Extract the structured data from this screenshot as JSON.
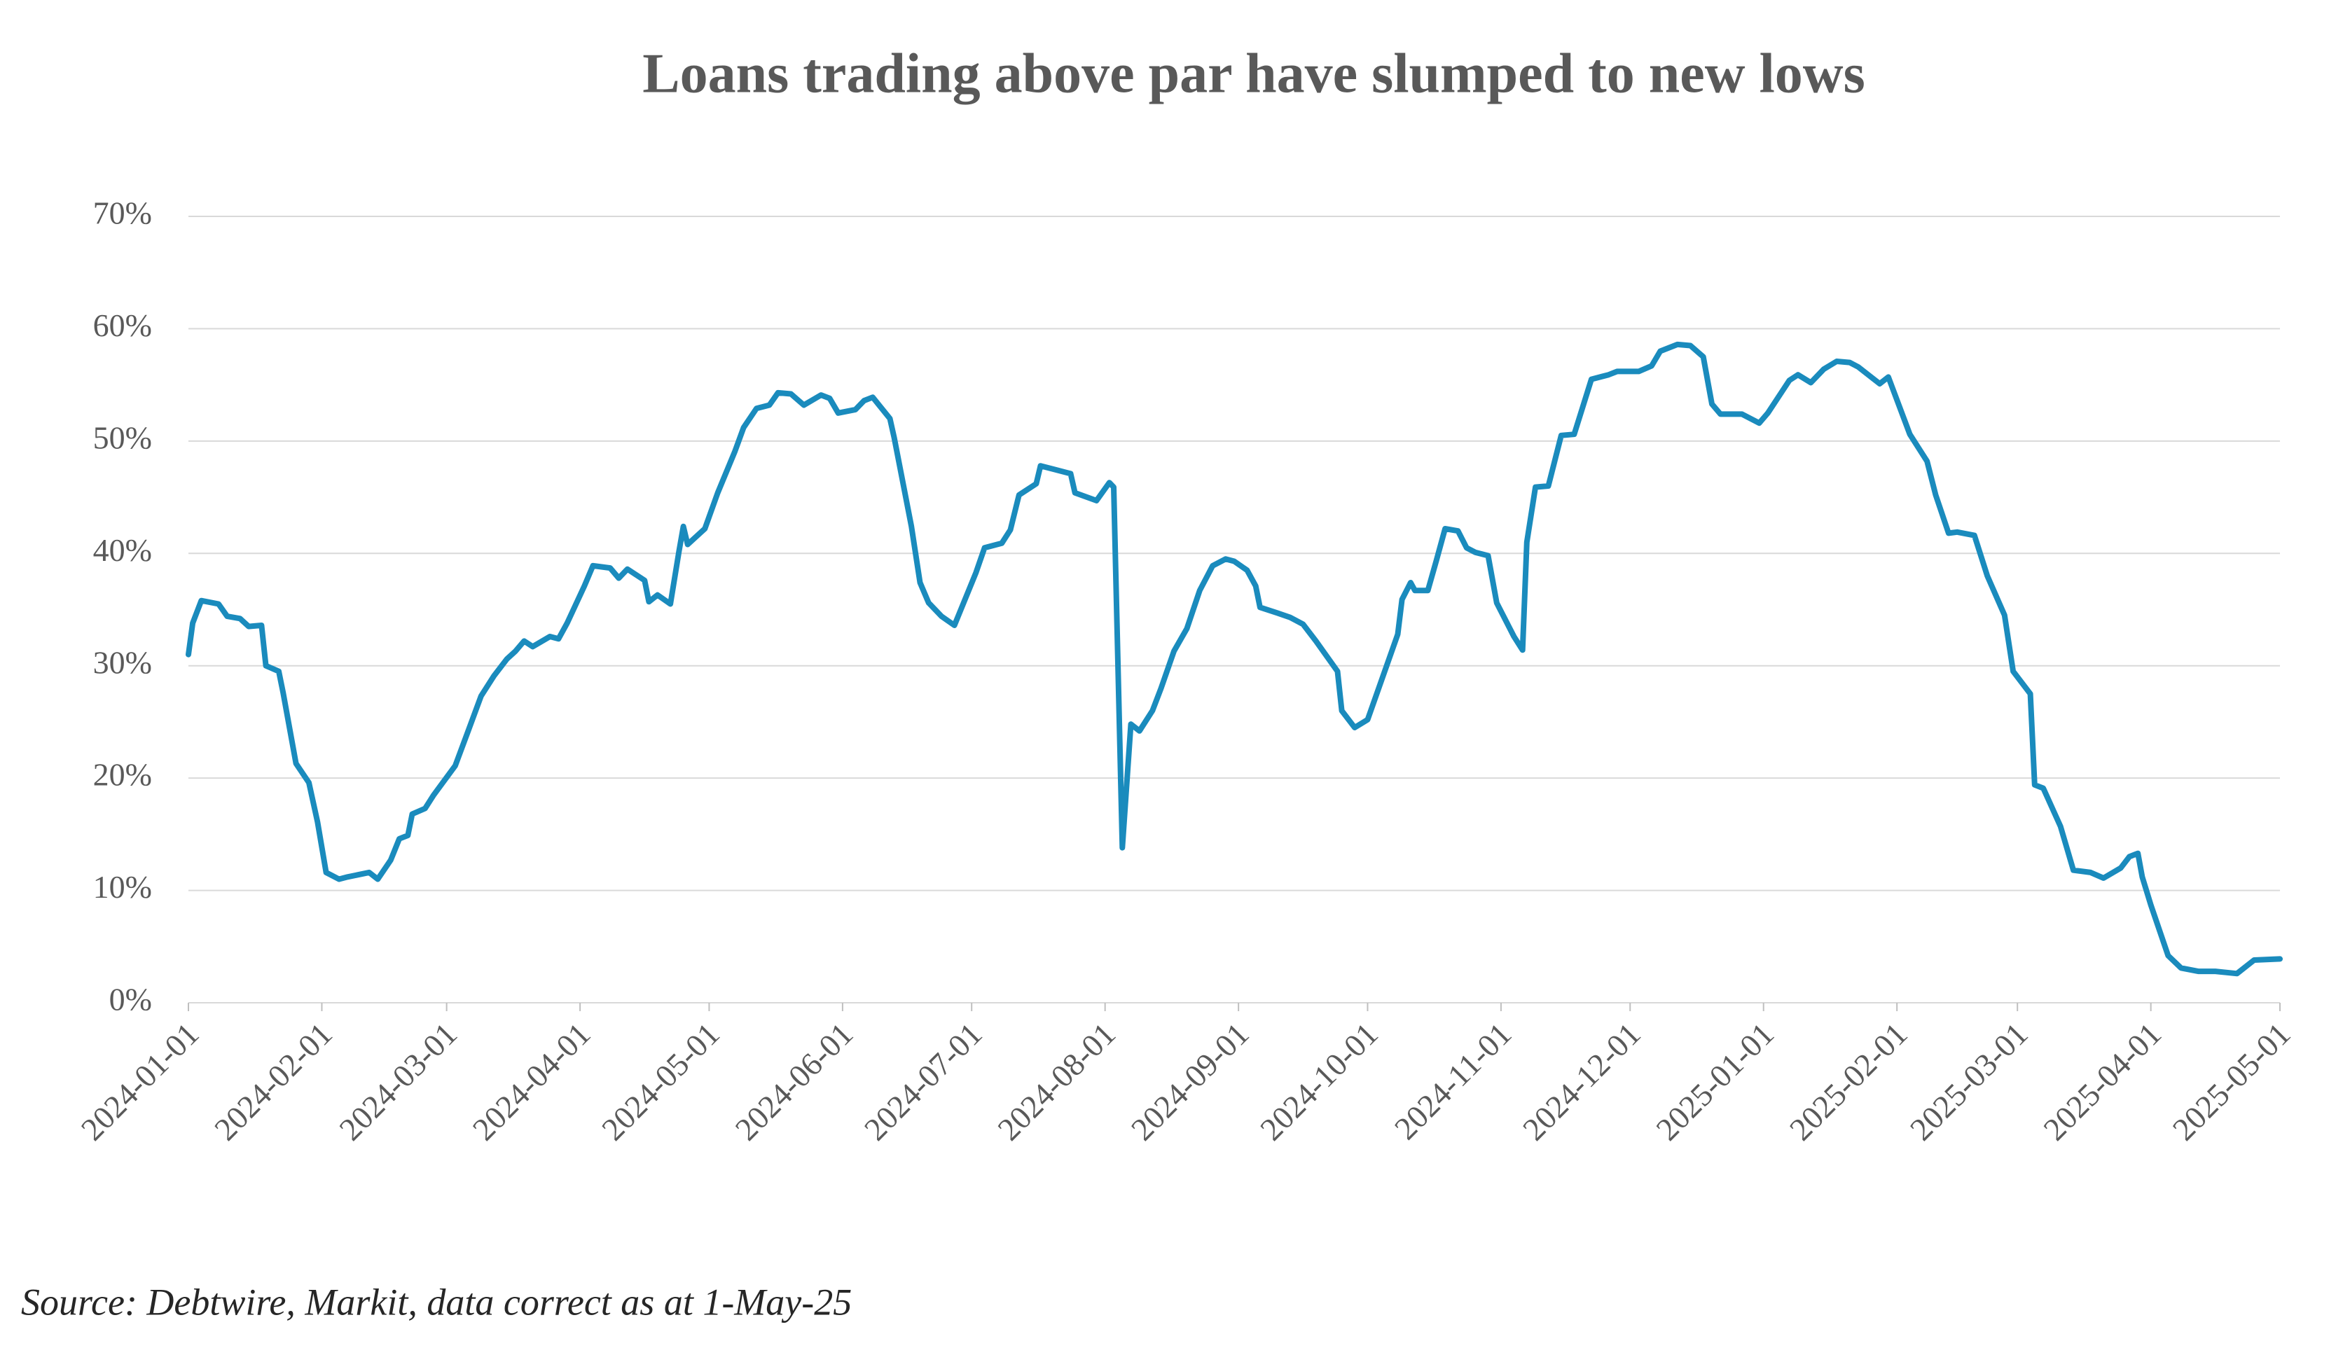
{
  "chart_data": {
    "type": "line",
    "title": "Loans trading above par have slumped to new lows",
    "source": "Source: Debtwire, Markit, data correct as at 1-May-25",
    "x": [
      "2024-01-01",
      "2024-01-02",
      "2024-01-04",
      "2024-01-08",
      "2024-01-10",
      "2024-01-13",
      "2024-01-15",
      "2024-01-18",
      "2024-01-19",
      "2024-01-22",
      "2024-01-23",
      "2024-01-26",
      "2024-01-29",
      "2024-01-31",
      "2024-02-02",
      "2024-02-05",
      "2024-02-07",
      "2024-02-12",
      "2024-02-14",
      "2024-02-17",
      "2024-02-19",
      "2024-02-21",
      "2024-02-22",
      "2024-02-25",
      "2024-02-27",
      "2024-03-03",
      "2024-03-06",
      "2024-03-09",
      "2024-03-12",
      "2024-03-15",
      "2024-03-17",
      "2024-03-19",
      "2024-03-21",
      "2024-03-25",
      "2024-03-27",
      "2024-03-29",
      "2024-04-02",
      "2024-04-04",
      "2024-04-08",
      "2024-04-10",
      "2024-04-12",
      "2024-04-16",
      "2024-04-17",
      "2024-04-19",
      "2024-04-22",
      "2024-04-24",
      "2024-04-25",
      "2024-04-26",
      "2024-04-30",
      "2024-05-03",
      "2024-05-07",
      "2024-05-09",
      "2024-05-12",
      "2024-05-15",
      "2024-05-17",
      "2024-05-20",
      "2024-05-23",
      "2024-05-27",
      "2024-05-29",
      "2024-05-31",
      "2024-06-04",
      "2024-06-06",
      "2024-06-08",
      "2024-06-12",
      "2024-06-13",
      "2024-06-17",
      "2024-06-19",
      "2024-06-21",
      "2024-06-24",
      "2024-06-27",
      "2024-07-02",
      "2024-07-04",
      "2024-07-08",
      "2024-07-10",
      "2024-07-12",
      "2024-07-16",
      "2024-07-17",
      "2024-07-20",
      "2024-07-24",
      "2024-07-25",
      "2024-07-30",
      "2024-08-02",
      "2024-08-03",
      "2024-08-05",
      "2024-08-07",
      "2024-08-09",
      "2024-08-12",
      "2024-08-14",
      "2024-08-17",
      "2024-08-20",
      "2024-08-23",
      "2024-08-26",
      "2024-08-29",
      "2024-08-31",
      "2024-09-03",
      "2024-09-05",
      "2024-09-06",
      "2024-09-10",
      "2024-09-13",
      "2024-09-16",
      "2024-09-19",
      "2024-09-24",
      "2024-09-25",
      "2024-09-28",
      "2024-10-01",
      "2024-10-08",
      "2024-10-09",
      "2024-10-11",
      "2024-10-12",
      "2024-10-15",
      "2024-10-17",
      "2024-10-19",
      "2024-10-22",
      "2024-10-24",
      "2024-10-26",
      "2024-10-29",
      "2024-10-31",
      "2024-11-04",
      "2024-11-06",
      "2024-11-07",
      "2024-11-09",
      "2024-11-12",
      "2024-11-15",
      "2024-11-18",
      "2024-11-22",
      "2024-11-26",
      "2024-11-28",
      "2024-12-03",
      "2024-12-06",
      "2024-12-08",
      "2024-12-12",
      "2024-12-15",
      "2024-12-18",
      "2024-12-20",
      "2024-12-22",
      "2024-12-27",
      "2024-12-31",
      "2025-01-02",
      "2025-01-07",
      "2025-01-09",
      "2025-01-12",
      "2025-01-15",
      "2025-01-18",
      "2025-01-21",
      "2025-01-23",
      "2025-01-28",
      "2025-01-30",
      "2025-02-04",
      "2025-02-08",
      "2025-02-10",
      "2025-02-13",
      "2025-02-15",
      "2025-02-19",
      "2025-02-22",
      "2025-02-26",
      "2025-02-28",
      "2025-03-04",
      "2025-03-05",
      "2025-03-07",
      "2025-03-11",
      "2025-03-14",
      "2025-03-18",
      "2025-03-21",
      "2025-03-25",
      "2025-03-27",
      "2025-03-29",
      "2025-03-30",
      "2025-04-01",
      "2025-04-05",
      "2025-04-08",
      "2025-04-12",
      "2025-04-16",
      "2025-04-21",
      "2025-04-25",
      "2025-05-01"
    ],
    "series": [
      {
        "name": "Loans trading above par",
        "color": "#1a8bbd",
        "values": [
          31,
          33.8,
          35.8,
          35.5,
          34.4,
          34.2,
          33.5,
          33.6,
          30,
          29.5,
          27.6,
          21.3,
          19.6,
          16.1,
          11.6,
          11,
          11.2,
          11.6,
          11,
          12.7,
          14.6,
          14.9,
          16.8,
          17.3,
          18.5,
          21.1,
          24.2,
          27.3,
          29.1,
          30.6,
          31.3,
          32.2,
          31.7,
          32.6,
          32.4,
          33.8,
          37.1,
          38.9,
          38.7,
          37.8,
          38.6,
          37.6,
          35.7,
          36.3,
          35.5,
          40.2,
          42.4,
          40.8,
          42.2,
          45.4,
          49.1,
          51.2,
          52.9,
          53.2,
          54.3,
          54.2,
          53.2,
          54.1,
          53.8,
          52.5,
          52.8,
          53.6,
          53.9,
          52,
          50.3,
          42.4,
          37.4,
          35.6,
          34.4,
          33.6,
          38.3,
          40.5,
          40.9,
          42.1,
          45.2,
          46.2,
          47.8,
          47.5,
          47.1,
          45.4,
          44.7,
          46.3,
          45.9,
          13.8,
          24.8,
          24.2,
          26,
          28,
          31.3,
          33.3,
          36.7,
          38.9,
          39.5,
          39.3,
          38.5,
          37.1,
          35.2,
          34.7,
          34.3,
          33.7,
          32.2,
          29.5,
          26,
          24.5,
          25.2,
          32.8,
          35.9,
          37.4,
          36.7,
          36.7,
          39.4,
          42.2,
          42,
          40.5,
          40.1,
          39.8,
          35.6,
          32.6,
          31.4,
          41,
          45.9,
          46,
          50.5,
          50.6,
          55.5,
          55.9,
          56.2,
          56.2,
          56.7,
          58,
          58.6,
          58.5,
          57.5,
          53.3,
          52.4,
          52.4,
          51.6,
          52.5,
          55.4,
          55.9,
          55.2,
          56.4,
          57.1,
          57,
          56.6,
          55.1,
          55.7,
          50.6,
          48.2,
          45.2,
          41.8,
          41.9,
          41.6,
          38,
          34.5,
          29.5,
          27.5,
          19.4,
          19.1,
          15.7,
          11.8,
          11.6,
          11.1,
          12,
          13,
          13.3,
          11.2,
          8.7,
          4.2,
          3.1,
          2.8,
          2.8,
          2.6,
          3.8,
          3.9
        ]
      }
    ],
    "xlim": [
      "2024-01-01",
      "2025-05-01"
    ],
    "xticks": [
      "2024-01-01",
      "2024-02-01",
      "2024-03-01",
      "2024-04-01",
      "2024-05-01",
      "2024-06-01",
      "2024-07-01",
      "2024-08-01",
      "2024-09-01",
      "2024-10-01",
      "2024-11-01",
      "2024-12-01",
      "2025-01-01",
      "2025-02-01",
      "2025-03-01",
      "2025-04-01",
      "2025-05-01"
    ],
    "ylim": [
      0,
      70
    ],
    "yticks": [
      {
        "value": 0,
        "label": "0%"
      },
      {
        "value": 10,
        "label": "10%"
      },
      {
        "value": 20,
        "label": "20%"
      },
      {
        "value": 30,
        "label": "30%"
      },
      {
        "value": 40,
        "label": "40%"
      },
      {
        "value": 50,
        "label": "50%"
      },
      {
        "value": 60,
        "label": "60%"
      },
      {
        "value": 70,
        "label": "70%"
      }
    ],
    "grid": true
  }
}
